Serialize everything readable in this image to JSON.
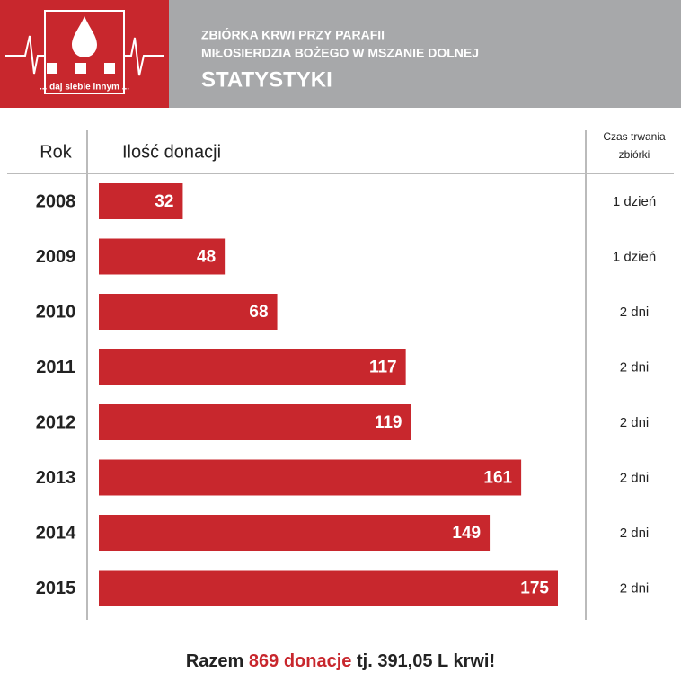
{
  "header": {
    "logo_text": "... daj siebie innym ...",
    "line1": "ZBIÓRKA KRWI PRZY PARAFII",
    "line2": "MIŁOSIERDZIA BOŻEGO W MSZANIE DOLNEJ",
    "subtitle": "STATYSTYKI"
  },
  "chart_data": {
    "type": "bar",
    "orientation": "horizontal",
    "category_header": "Rok",
    "value_header": "Ilość donacji",
    "extra_header": "Czas trwania zbiórki",
    "categories": [
      "2008",
      "2009",
      "2010",
      "2011",
      "2012",
      "2013",
      "2014",
      "2015"
    ],
    "values": [
      32,
      48,
      68,
      117,
      119,
      161,
      149,
      175
    ],
    "extra": [
      "1 dzień",
      "1 dzień",
      "2 dni",
      "2 dni",
      "2 dni",
      "2 dni",
      "2 dni",
      "2 dni"
    ],
    "color": "#c8272d"
  },
  "footer": {
    "parts": [
      "Razem",
      "869 donacje",
      "tj. 391,05 L krwi!"
    ]
  }
}
